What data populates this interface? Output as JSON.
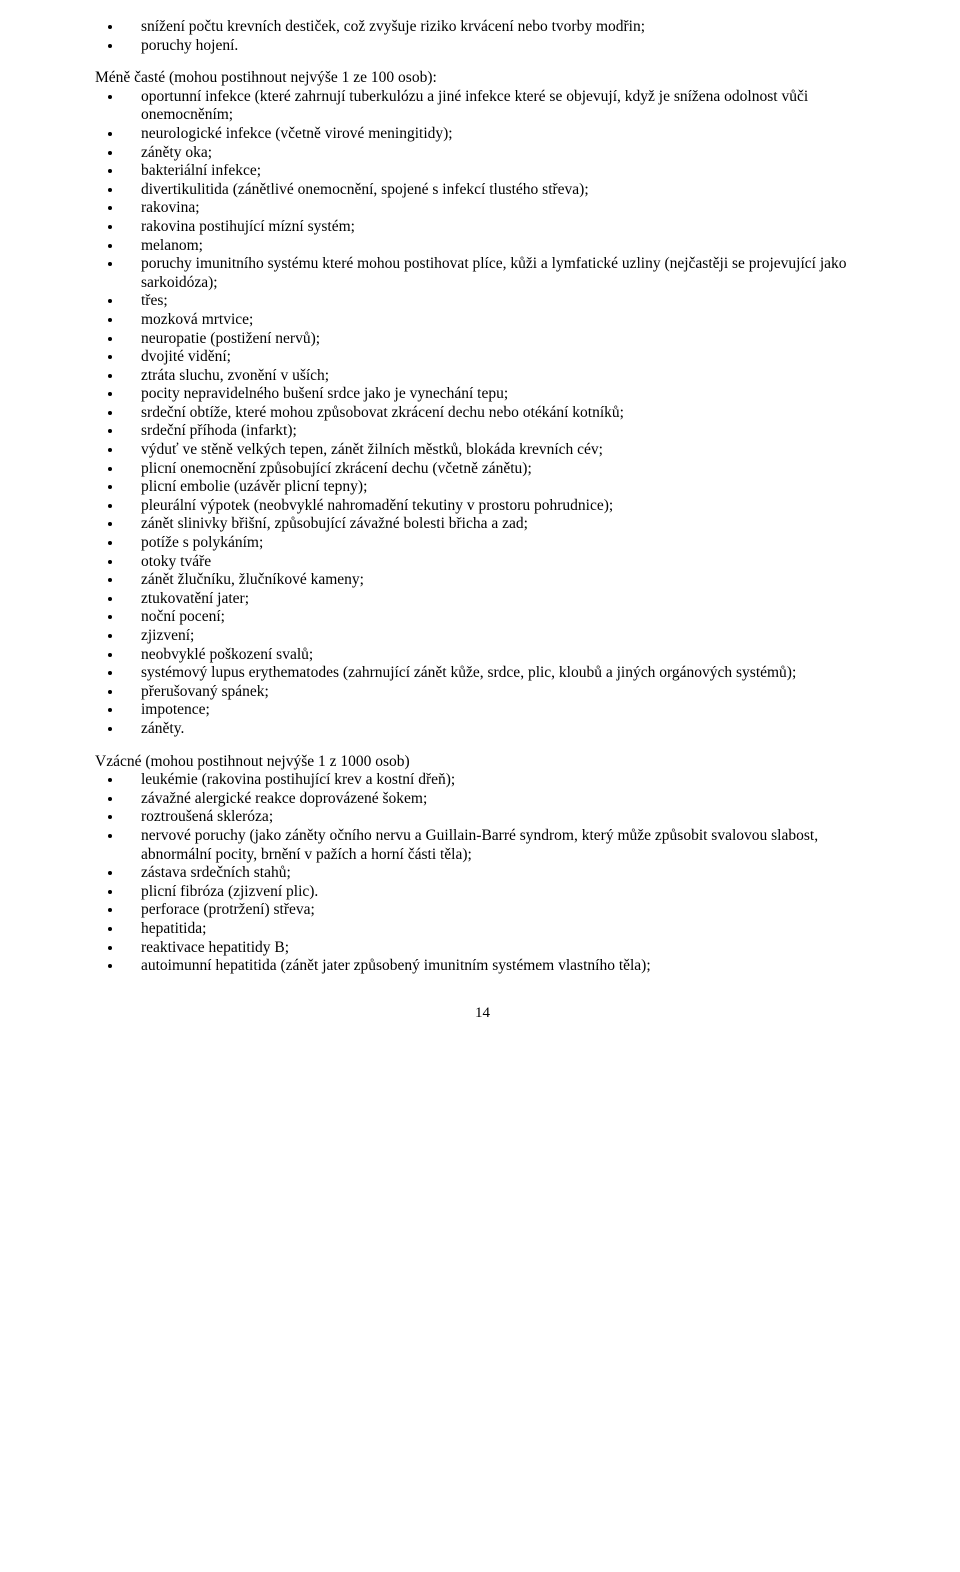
{
  "list0": {
    "items": [
      "snížení počtu krevních destiček, což zvyšuje riziko krvácení nebo tvorby modřin;",
      "poruchy hojení."
    ]
  },
  "section1": {
    "heading": "Méně časté (mohou postihnout nejvýše 1 ze 100 osob):",
    "items": [
      "oportunní infekce (které zahrnují tuberkulózu a jiné infekce které se objevují, když je snížena odolnost vůči onemocněním;",
      "neurologické infekce (včetně virové meningitidy);",
      "záněty oka;",
      "bakteriální infekce;",
      "divertikulitida (zánětlivé onemocnění, spojené s infekcí tlustého střeva);",
      "rakovina;",
      "rakovina postihující mízní systém;",
      "melanom;",
      "poruchy imunitního systému které mohou postihovat plíce, kůži a lymfatické uzliny (nejčastěji se projevující jako sarkoidóza);",
      "třes;",
      "mozková mrtvice;",
      "neuropatie (postižení nervů);",
      "dvojité vidění;",
      "ztráta sluchu, zvonění v uších;",
      "pocity nepravidelného bušení srdce jako je vynechání tepu;",
      "srdeční obtíže, které mohou způsobovat zkrácení dechu nebo otékání kotníků;",
      "srdeční příhoda (infarkt);",
      "výduť ve stěně velkých tepen, zánět žilních městků, blokáda krevních cév;",
      "plicní onemocnění způsobující zkrácení dechu (včetně zánětu);",
      "plicní embolie (uzávěr plicní tepny);",
      "pleurální výpotek (neobvyklé nahromadění tekutiny v prostoru pohrudnice);",
      "zánět slinivky břišní, způsobující závažné bolesti břicha a zad;",
      "potíže s polykáním;",
      "otoky tváře",
      "zánět žlučníku, žlučníkové kameny;",
      "ztukovatění jater;",
      "noční pocení;",
      "zjizvení;",
      "neobvyklé poškození svalů;",
      "systémový lupus erythematodes (zahrnující zánět kůže, srdce, plic, kloubů a jiných orgánových systémů);",
      "přerušovaný spánek;",
      "impotence;",
      "záněty."
    ]
  },
  "section2": {
    "heading": "Vzácné (mohou postihnout nejvýše 1 z 1000 osob)",
    "items": [
      "leukémie (rakovina postihující krev a kostní dřeň);",
      "závažné alergické reakce doprovázené šokem;",
      "roztroušená skleróza;",
      "nervové poruchy (jako záněty očního nervu a Guillain-Barré syndrom, který může způsobit svalovou slabost, abnormální pocity, brnění v pažích a horní části těla);",
      "zástava srdečních stahů;",
      "plicní fibróza (zjizvení plic).",
      "perforace (protržení) střeva;",
      "hepatitida;",
      "reaktivace hepatitidy B;",
      "autoimunní hepatitida (zánět jater způsobený imunitním systémem vlastního těla);"
    ]
  },
  "page_number": "14"
}
